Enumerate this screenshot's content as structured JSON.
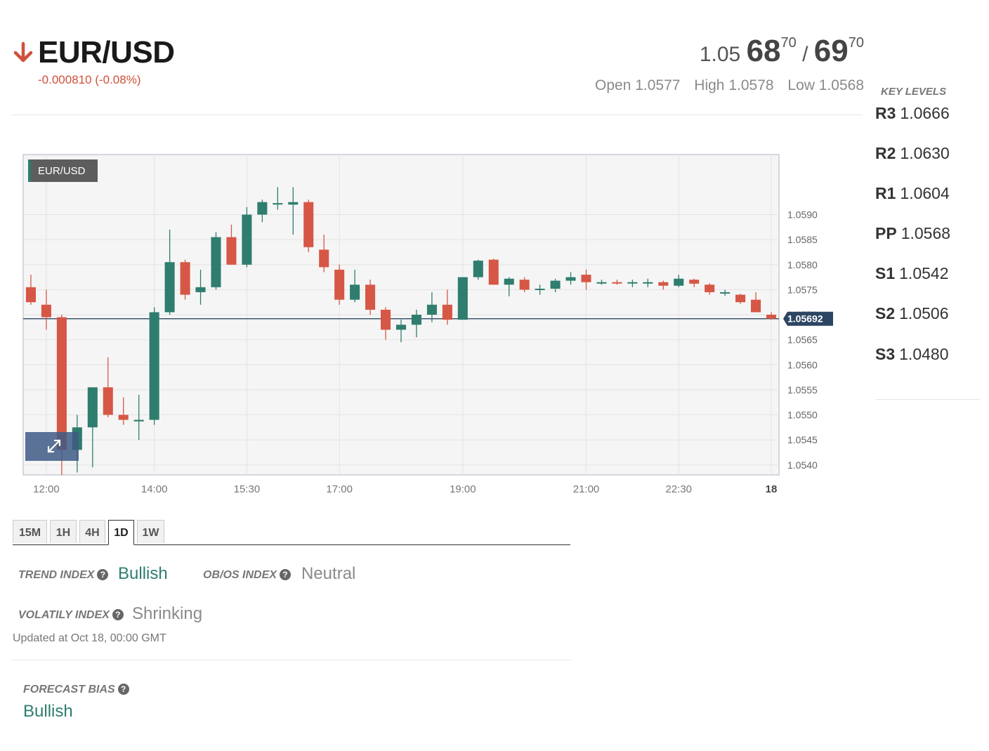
{
  "header": {
    "symbol": "EUR/USD",
    "direction": "down-arrow-icon",
    "change": "-0.000810 (-0.08%)",
    "change_color": "#d0503a",
    "bid_prefix": "1.05",
    "bid_big": "68",
    "bid_pip": "70",
    "separator": "/",
    "ask_big": "69",
    "ask_pip": "70",
    "open": "Open 1.0577",
    "high": "High 1.0578",
    "low": "Low 1.0568"
  },
  "chart_data": {
    "type": "candlestick",
    "label": "EUR/USD",
    "current_price": 1.05692,
    "current_price_label": "1.05692",
    "ylim": [
      1.0538,
      1.0602
    ],
    "y_ticks": [
      {
        "value": 1.059,
        "label": "1.0590"
      },
      {
        "value": 1.0585,
        "label": "1.0585"
      },
      {
        "value": 1.058,
        "label": "1.0580"
      },
      {
        "value": 1.0575,
        "label": "1.0575"
      },
      {
        "value": 1.057,
        "label": "1.0570"
      },
      {
        "value": 1.0565,
        "label": "1.0565"
      },
      {
        "value": 1.056,
        "label": "1.0560"
      },
      {
        "value": 1.0555,
        "label": "1.0555"
      },
      {
        "value": 1.055,
        "label": "1.0550"
      },
      {
        "value": 1.0545,
        "label": "1.0545"
      },
      {
        "value": 1.054,
        "label": "1.0540"
      }
    ],
    "x_ticks": [
      {
        "index": 1,
        "label": "12:00"
      },
      {
        "index": 8,
        "label": "14:00"
      },
      {
        "index": 14,
        "label": "15:30"
      },
      {
        "index": 20,
        "label": "17:00"
      },
      {
        "index": 28,
        "label": "19:00"
      },
      {
        "index": 36,
        "label": "21:00"
      },
      {
        "index": 42,
        "label": "22:30"
      },
      {
        "index": 48,
        "label": "18",
        "bold": true
      }
    ],
    "x_count": 49,
    "candles": [
      {
        "o": 1.05755,
        "h": 1.0578,
        "l": 1.0572,
        "c": 1.05725
      },
      {
        "o": 1.0572,
        "h": 1.0575,
        "l": 1.0567,
        "c": 1.05695
      },
      {
        "o": 1.05695,
        "h": 1.057,
        "l": 1.0538,
        "c": 1.0543
      },
      {
        "o": 1.0543,
        "h": 1.055,
        "l": 1.05385,
        "c": 1.05475
      },
      {
        "o": 1.05475,
        "h": 1.05555,
        "l": 1.05395,
        "c": 1.05555
      },
      {
        "o": 1.05555,
        "h": 1.05615,
        "l": 1.05495,
        "c": 1.055
      },
      {
        "o": 1.055,
        "h": 1.05535,
        "l": 1.0548,
        "c": 1.0549
      },
      {
        "o": 1.05487,
        "h": 1.0554,
        "l": 1.0545,
        "c": 1.0549
      },
      {
        "o": 1.0549,
        "h": 1.05715,
        "l": 1.0548,
        "c": 1.05705
      },
      {
        "o": 1.05705,
        "h": 1.0587,
        "l": 1.057,
        "c": 1.05805
      },
      {
        "o": 1.05805,
        "h": 1.0581,
        "l": 1.0573,
        "c": 1.0574
      },
      {
        "o": 1.05745,
        "h": 1.0579,
        "l": 1.0572,
        "c": 1.05755
      },
      {
        "o": 1.05755,
        "h": 1.05865,
        "l": 1.0575,
        "c": 1.05855
      },
      {
        "o": 1.05855,
        "h": 1.0588,
        "l": 1.058,
        "c": 1.058
      },
      {
        "o": 1.058,
        "h": 1.05915,
        "l": 1.05795,
        "c": 1.059
      },
      {
        "o": 1.059,
        "h": 1.0593,
        "l": 1.05885,
        "c": 1.05925
      },
      {
        "o": 1.05923,
        "h": 1.05955,
        "l": 1.0591,
        "c": 1.05923
      },
      {
        "o": 1.0592,
        "h": 1.05955,
        "l": 1.0586,
        "c": 1.05925
      },
      {
        "o": 1.05925,
        "h": 1.0593,
        "l": 1.05825,
        "c": 1.05835
      },
      {
        "o": 1.0583,
        "h": 1.0586,
        "l": 1.05785,
        "c": 1.05795
      },
      {
        "o": 1.0579,
        "h": 1.058,
        "l": 1.0572,
        "c": 1.0573
      },
      {
        "o": 1.0573,
        "h": 1.0579,
        "l": 1.05725,
        "c": 1.0576
      },
      {
        "o": 1.0576,
        "h": 1.0577,
        "l": 1.057,
        "c": 1.0571
      },
      {
        "o": 1.0571,
        "h": 1.05715,
        "l": 1.0565,
        "c": 1.0567
      },
      {
        "o": 1.0567,
        "h": 1.0569,
        "l": 1.05645,
        "c": 1.0568
      },
      {
        "o": 1.0568,
        "h": 1.0571,
        "l": 1.05655,
        "c": 1.057
      },
      {
        "o": 1.057,
        "h": 1.05745,
        "l": 1.05685,
        "c": 1.0572
      },
      {
        "o": 1.0572,
        "h": 1.0575,
        "l": 1.0568,
        "c": 1.0569
      },
      {
        "o": 1.0569,
        "h": 1.05775,
        "l": 1.0569,
        "c": 1.05775
      },
      {
        "o": 1.05775,
        "h": 1.0581,
        "l": 1.0577,
        "c": 1.05808
      },
      {
        "o": 1.0581,
        "h": 1.05812,
        "l": 1.0576,
        "c": 1.0576
      },
      {
        "o": 1.0576,
        "h": 1.05775,
        "l": 1.05737,
        "c": 1.05772
      },
      {
        "o": 1.0577,
        "h": 1.05775,
        "l": 1.05745,
        "c": 1.0575
      },
      {
        "o": 1.05752,
        "h": 1.0576,
        "l": 1.0574,
        "c": 1.05752
      },
      {
        "o": 1.05752,
        "h": 1.05772,
        "l": 1.05745,
        "c": 1.05768
      },
      {
        "o": 1.05768,
        "h": 1.05785,
        "l": 1.0576,
        "c": 1.05775
      },
      {
        "o": 1.0578,
        "h": 1.0579,
        "l": 1.0575,
        "c": 1.05765
      },
      {
        "o": 1.05765,
        "h": 1.0577,
        "l": 1.0576,
        "c": 1.05765
      },
      {
        "o": 1.05765,
        "h": 1.0577,
        "l": 1.0576,
        "c": 1.05763
      },
      {
        "o": 1.05763,
        "h": 1.0577,
        "l": 1.05755,
        "c": 1.05765
      },
      {
        "o": 1.05763,
        "h": 1.05772,
        "l": 1.05755,
        "c": 1.05765
      },
      {
        "o": 1.05765,
        "h": 1.05768,
        "l": 1.0575,
        "c": 1.05758
      },
      {
        "o": 1.05758,
        "h": 1.0578,
        "l": 1.05755,
        "c": 1.05772
      },
      {
        "o": 1.0577,
        "h": 1.05772,
        "l": 1.05755,
        "c": 1.05762
      },
      {
        "o": 1.0576,
        "h": 1.05763,
        "l": 1.0574,
        "c": 1.05745
      },
      {
        "o": 1.05745,
        "h": 1.0575,
        "l": 1.05738,
        "c": 1.05745
      },
      {
        "o": 1.0574,
        "h": 1.05742,
        "l": 1.05722,
        "c": 1.05725
      },
      {
        "o": 1.0573,
        "h": 1.05745,
        "l": 1.05705,
        "c": 1.05705
      },
      {
        "o": 1.057,
        "h": 1.05705,
        "l": 1.0569,
        "c": 1.05692
      }
    ],
    "up_color": "#2f7d6e",
    "down_color": "#d65745",
    "grid": true
  },
  "key_levels": {
    "title": "KEY LEVELS",
    "levels": [
      {
        "name": "R3",
        "value": "1.0666"
      },
      {
        "name": "R2",
        "value": "1.0630"
      },
      {
        "name": "R1",
        "value": "1.0604"
      },
      {
        "name": "PP",
        "value": "1.0568"
      },
      {
        "name": "S1",
        "value": "1.0542"
      },
      {
        "name": "S2",
        "value": "1.0506"
      },
      {
        "name": "S3",
        "value": "1.0480"
      }
    ]
  },
  "tabs": [
    "15M",
    "1H",
    "4H",
    "1D",
    "1W"
  ],
  "active_tab": "1D",
  "indices": {
    "trend_label": "TREND INDEX",
    "trend_value": "Bullish",
    "obos_label": "OB/OS INDEX",
    "obos_value": "Neutral",
    "volatility_label": "VOLATILY INDEX",
    "volatility_value": "Shrinking",
    "updated": "Updated at Oct 18, 00:00 GMT",
    "help_icon": "question-circle-icon"
  },
  "forecast": {
    "label": "FORECAST BIAS",
    "value": "Bullish"
  },
  "colors": {
    "bullish": "#2e7d6f",
    "neutral": "#8a8a8a",
    "price_tag": "#2c4563"
  }
}
